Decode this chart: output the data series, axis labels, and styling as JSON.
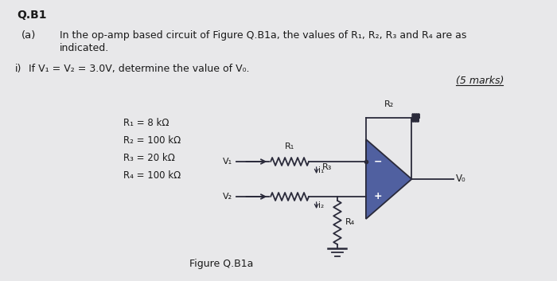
{
  "bg_color": "#e8e8ea",
  "title": "Q.B1",
  "text_color": "#1a1a1a",
  "circuit_color": "#2a2a3a",
  "r1_text": "R₁ = 8 kΩ",
  "r2_text": "R₂ = 100 kΩ",
  "r3_text": "R₃ = 20 kΩ",
  "r4_text": "R₄ = 100 kΩ",
  "fig_label": "Figure Q.B1a",
  "opamp_color": "#5060a0",
  "opamp_edge": "#2a2a3a"
}
